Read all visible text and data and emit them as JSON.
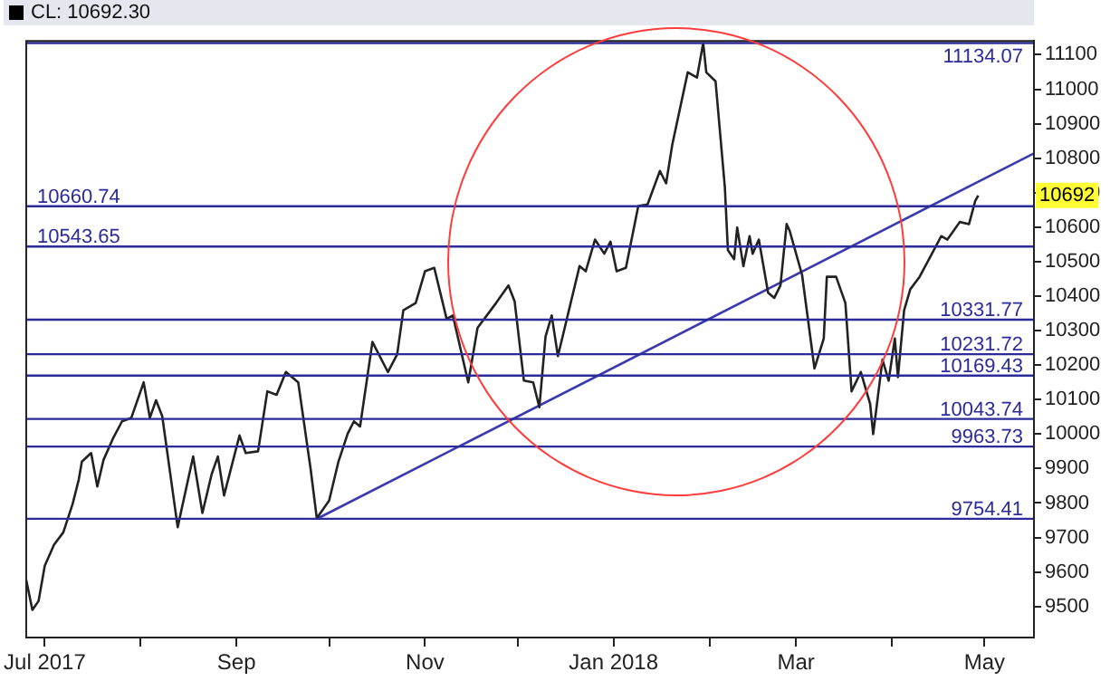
{
  "chart_data": {
    "type": "line",
    "title": "CL: 10692.30",
    "xlim": [
      "2017-06-25",
      "2018-05-17"
    ],
    "xticks": [
      {
        "value": "2017-07-01",
        "label": "Jul 2017"
      },
      {
        "value": "2017-08-01",
        "label": null
      },
      {
        "value": "2017-09-01",
        "label": "Sep"
      },
      {
        "value": "2017-10-01",
        "label": null
      },
      {
        "value": "2017-11-01",
        "label": "Nov"
      },
      {
        "value": "2017-12-01",
        "label": null
      },
      {
        "value": "2018-01-01",
        "label": "Jan 2018"
      },
      {
        "value": "2018-02-01",
        "label": null
      },
      {
        "value": "2018-03-01",
        "label": "Mar"
      },
      {
        "value": "2018-04-01",
        "label": null
      },
      {
        "value": "2018-05-01",
        "label": "May"
      }
    ],
    "ylim": [
      9410,
      11140
    ],
    "yticks": [
      9500,
      9600,
      9700,
      9800,
      9900,
      10000,
      10100,
      10200,
      10300,
      10400,
      10500,
      10600,
      10700,
      10800,
      10900,
      11000,
      11100
    ],
    "grid": false,
    "legend": false,
    "series": [
      {
        "color": "#222222",
        "x": [
          "2017-06-25",
          "2017-06-27",
          "2017-06-29",
          "2017-07-01",
          "2017-07-04",
          "2017-07-07",
          "2017-07-10",
          "2017-07-12",
          "2017-07-13",
          "2017-07-16",
          "2017-07-18",
          "2017-07-20",
          "2017-07-23",
          "2017-07-26",
          "2017-07-29",
          "2017-08-02",
          "2017-08-04",
          "2017-08-06",
          "2017-08-08",
          "2017-08-13",
          "2017-08-18",
          "2017-08-21",
          "2017-08-24",
          "2017-08-26",
          "2017-08-28",
          "2017-09-02",
          "2017-09-04",
          "2017-09-08",
          "2017-09-11",
          "2017-09-14",
          "2017-09-17",
          "2017-09-21",
          "2017-09-25",
          "2017-09-27",
          "2017-10-01",
          "2017-10-04",
          "2017-10-07",
          "2017-10-09",
          "2017-10-11",
          "2017-10-15",
          "2017-10-20",
          "2017-10-23",
          "2017-10-25",
          "2017-10-29",
          "2017-11-01",
          "2017-11-04",
          "2017-11-08",
          "2017-11-10",
          "2017-11-15",
          "2017-11-18",
          "2017-11-24",
          "2017-11-28",
          "2017-11-30",
          "2017-12-03",
          "2017-12-06",
          "2017-12-08",
          "2017-12-10",
          "2017-12-12",
          "2017-12-14",
          "2017-12-21",
          "2017-12-23",
          "2017-12-26",
          "2017-12-29",
          "2017-12-31",
          "2018-01-02",
          "2018-01-05",
          "2018-01-09",
          "2018-01-12",
          "2018-01-16",
          "2018-01-18",
          "2018-01-20",
          "2018-01-25",
          "2018-01-28",
          "2018-01-30",
          "2018-01-31",
          "2018-02-03",
          "2018-02-06",
          "2018-02-07",
          "2018-02-09",
          "2018-02-10",
          "2018-02-12",
          "2018-02-14",
          "2018-02-15",
          "2018-02-17",
          "2018-02-20",
          "2018-02-22",
          "2018-02-24",
          "2018-02-26",
          "2018-02-27",
          "2018-03-03",
          "2018-03-07",
          "2018-03-10",
          "2018-03-11",
          "2018-03-14",
          "2018-03-17",
          "2018-03-19",
          "2018-03-22",
          "2018-03-25",
          "2018-03-26",
          "2018-03-29",
          "2018-03-31",
          "2018-04-02",
          "2018-04-03",
          "2018-04-05",
          "2018-04-07",
          "2018-04-10",
          "2018-04-14",
          "2018-04-17",
          "2018-04-19",
          "2018-04-23",
          "2018-04-26",
          "2018-04-28",
          "2018-04-29"
        ],
        "values": [
          9577,
          9490,
          9516,
          9618,
          9679,
          9715,
          9797,
          9868,
          9920,
          9945,
          9848,
          9925,
          9986,
          10037,
          10047,
          10150,
          10047,
          10098,
          10052,
          9730,
          9935,
          9771,
          9884,
          9935,
          9822,
          9996,
          9945,
          9950,
          10124,
          10114,
          10180,
          10150,
          9899,
          9756,
          9807,
          9920,
          10001,
          10037,
          10022,
          10267,
          10180,
          10231,
          10359,
          10380,
          10472,
          10482,
          10334,
          10344,
          10150,
          10308,
          10380,
          10431,
          10385,
          10155,
          10150,
          10078,
          10283,
          10344,
          10226,
          10487,
          10472,
          10564,
          10523,
          10558,
          10472,
          10482,
          10661,
          10666,
          10763,
          10727,
          10839,
          11049,
          11034,
          11134,
          11049,
          11023,
          10717,
          10533,
          10507,
          10599,
          10487,
          10574,
          10523,
          10564,
          10410,
          10395,
          10431,
          10609,
          10589,
          10461,
          10190,
          10277,
          10456,
          10456,
          10380,
          10124,
          10180,
          10088,
          10000,
          10216,
          10155,
          10277,
          10165,
          10359,
          10420,
          10456,
          10523,
          10574,
          10564,
          10615,
          10609,
          10676,
          10692
        ]
      },
      {
        "type": "line",
        "color": "#3a3ab0",
        "x": [
          "2017-09-27",
          "2018-05-17"
        ],
        "values": [
          9754,
          10814
        ]
      }
    ],
    "ref_lines": [
      {
        "axis": "y",
        "value": 11134.07,
        "label": "11134.07",
        "color": "#2b2b9a"
      },
      {
        "axis": "y",
        "value": 10660.74,
        "label": "10660.74",
        "color": "#2b2b9a"
      },
      {
        "axis": "y",
        "value": 10543.65,
        "label": "10543.65",
        "color": "#2b2b9a"
      },
      {
        "axis": "y",
        "value": 10331.77,
        "label": "10331.77",
        "color": "#2b2b9a"
      },
      {
        "axis": "y",
        "value": 10231.72,
        "label": "10231.72",
        "color": "#2b2b9a"
      },
      {
        "axis": "y",
        "value": 10169.43,
        "label": "10169.43",
        "color": "#2b2b9a"
      },
      {
        "axis": "y",
        "value": 10043.74,
        "label": "10043.74",
        "color": "#2b2b9a"
      },
      {
        "axis": "y",
        "value": 9963.73,
        "label": "9963.73",
        "color": "#2b2b9a"
      },
      {
        "axis": "y",
        "value": 9754.41,
        "label": "9754.41",
        "color": "#2b2b9a"
      }
    ],
    "annotations": [
      {
        "text": "10692",
        "y": 10692
      }
    ]
  }
}
